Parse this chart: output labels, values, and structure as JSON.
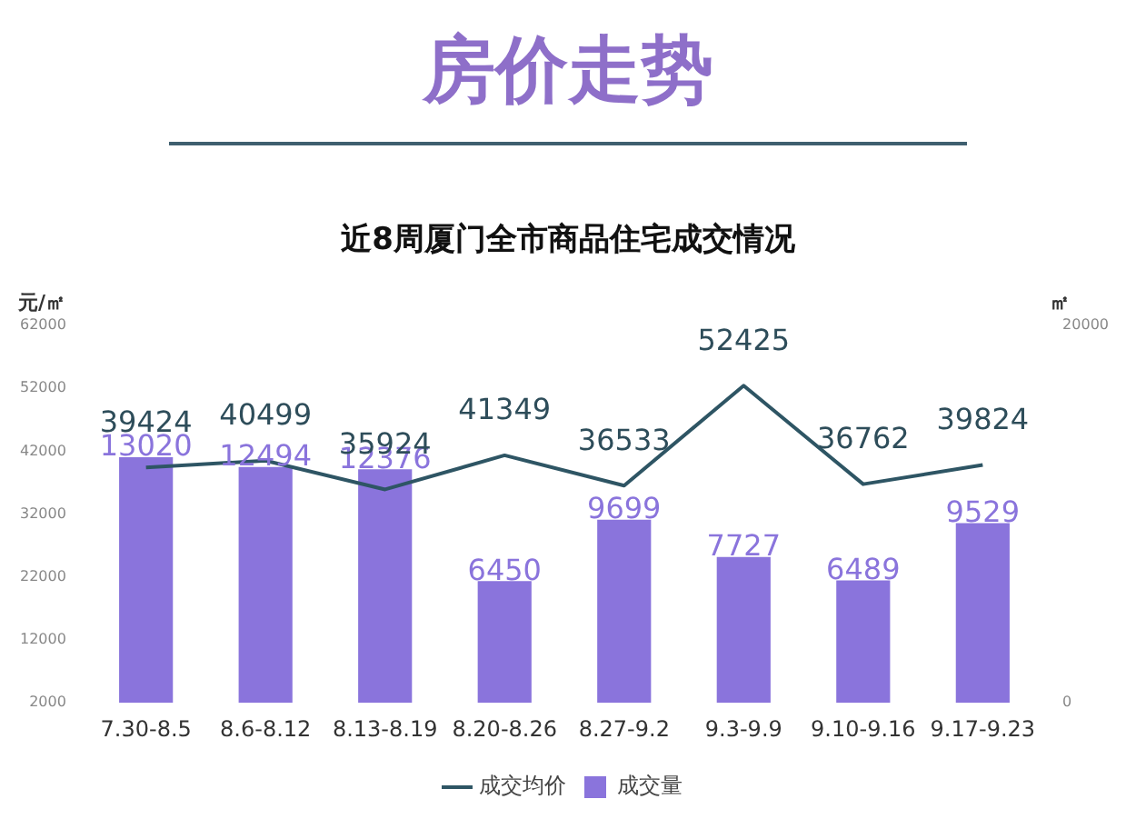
{
  "chart_data": {
    "type": "bar",
    "title": "房价走势",
    "subtitle": "近8周厦门全市商品住宅成交情况",
    "ylabel": "元/㎡",
    "y2label": "㎡",
    "categories": [
      "7.30-8.5",
      "8.6-8.12",
      "8.13-8.19",
      "8.20-8.26",
      "8.27-9.2",
      "9.3-9.9",
      "9.10-9.16",
      "9.17-9.23"
    ],
    "series": [
      {
        "name": "成交量",
        "axis": "y2",
        "color": "#8a74dc",
        "values": [
          13020,
          12494,
          12376,
          6450,
          9699,
          7727,
          6489,
          9529
        ]
      },
      {
        "name": "成交均价",
        "type": "line",
        "axis": "y",
        "color": "#2e5564",
        "values": [
          39424,
          40499,
          35924,
          41349,
          36533,
          52425,
          36762,
          39824
        ]
      }
    ],
    "ylim": [
      2000,
      62000
    ],
    "yticks": [
      2000,
      12000,
      22000,
      32000,
      42000,
      52000,
      62000
    ],
    "y2lim": [
      0,
      20000
    ],
    "y2ticks": [
      0,
      20000
    ],
    "data_labels": true,
    "grid": false,
    "legend": "bottom",
    "marker": "none",
    "line_style": "solid"
  }
}
